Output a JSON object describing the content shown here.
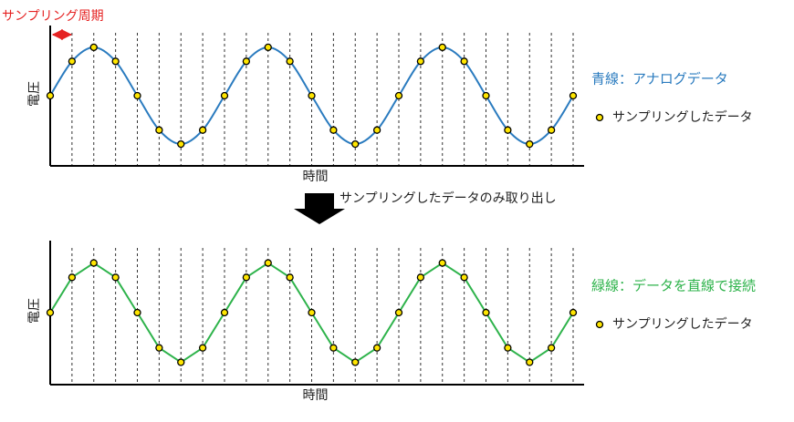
{
  "annotation": "サンプリングしたデータのみ取り出し",
  "chart_data": [
    {
      "type": "line",
      "annotation": "サンプリング周期",
      "xlabel": "時間",
      "ylabel": "電圧",
      "x": [
        0,
        1,
        2,
        3,
        4,
        5,
        6,
        7,
        8,
        9,
        10,
        11,
        12,
        13,
        14,
        15,
        16,
        17,
        18,
        19,
        20,
        21,
        22,
        23,
        24
      ],
      "xlim": [
        0,
        24
      ],
      "ylim": [
        -1.45,
        1.45
      ],
      "series": [
        {
          "name": "青線：アナログデータ",
          "color": "#2a7bbf",
          "style": "smooth",
          "values": [
            0,
            0.71,
            1,
            0.71,
            0,
            -0.71,
            -1,
            -0.71,
            0,
            0.71,
            1,
            0.71,
            0,
            -0.71,
            -1,
            -0.71,
            0,
            0.71,
            1,
            0.71,
            0,
            -0.71,
            -1,
            -0.71,
            0
          ]
        },
        {
          "name": "サンプリングしたデータ",
          "color": "#ffe600",
          "style": "dots",
          "values": [
            0,
            0.71,
            1,
            0.71,
            0,
            -0.71,
            -1,
            -0.71,
            0,
            0.71,
            1,
            0.71,
            0,
            -0.71,
            -1,
            -0.71,
            0,
            0.71,
            1,
            0.71,
            0,
            -0.71,
            -1,
            -0.71,
            0
          ]
        }
      ]
    },
    {
      "type": "line",
      "xlabel": "時間",
      "ylabel": "電圧",
      "x": [
        0,
        1,
        2,
        3,
        4,
        5,
        6,
        7,
        8,
        9,
        10,
        11,
        12,
        13,
        14,
        15,
        16,
        17,
        18,
        19,
        20,
        21,
        22,
        23,
        24
      ],
      "xlim": [
        0,
        24
      ],
      "ylim": [
        -1.45,
        1.45
      ],
      "series": [
        {
          "name": "緑線：データを直線で接続",
          "color": "#2eb34b",
          "style": "straight",
          "values": [
            0,
            0.71,
            1,
            0.71,
            0,
            -0.71,
            -1,
            -0.71,
            0,
            0.71,
            1,
            0.71,
            0,
            -0.71,
            -1,
            -0.71,
            0,
            0.71,
            1,
            0.71,
            0,
            -0.71,
            -1,
            -0.71,
            0
          ]
        },
        {
          "name": "サンプリングしたデータ",
          "color": "#ffe600",
          "style": "dots",
          "values": [
            0,
            0.71,
            1,
            0.71,
            0,
            -0.71,
            -1,
            -0.71,
            0,
            0.71,
            1,
            0.71,
            0,
            -0.71,
            -1,
            -0.71,
            0,
            0.71,
            1,
            0.71,
            0,
            -0.71,
            -1,
            -0.71,
            0
          ]
        }
      ]
    }
  ]
}
